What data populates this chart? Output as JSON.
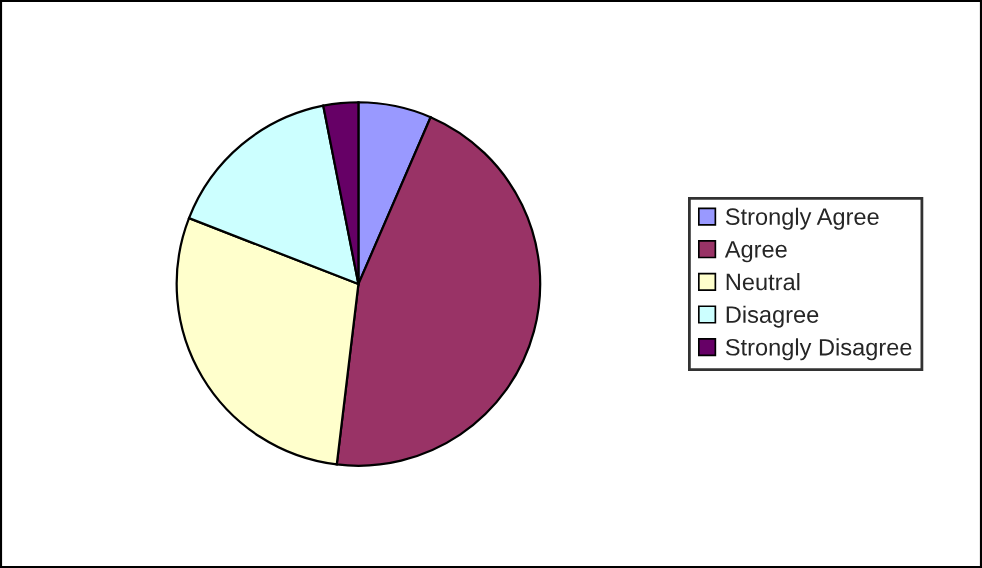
{
  "chart_data": {
    "type": "pie",
    "categories": [
      "Strongly Agree",
      "Agree",
      "Neutral",
      "Disagree",
      "Strongly Disagree"
    ],
    "values": [
      6.5,
      45.4,
      29,
      16,
      3.1
    ],
    "colors": [
      "#9999ff",
      "#993366",
      "#ffffcc",
      "#ccffff",
      "#660066"
    ],
    "legend": "right"
  }
}
